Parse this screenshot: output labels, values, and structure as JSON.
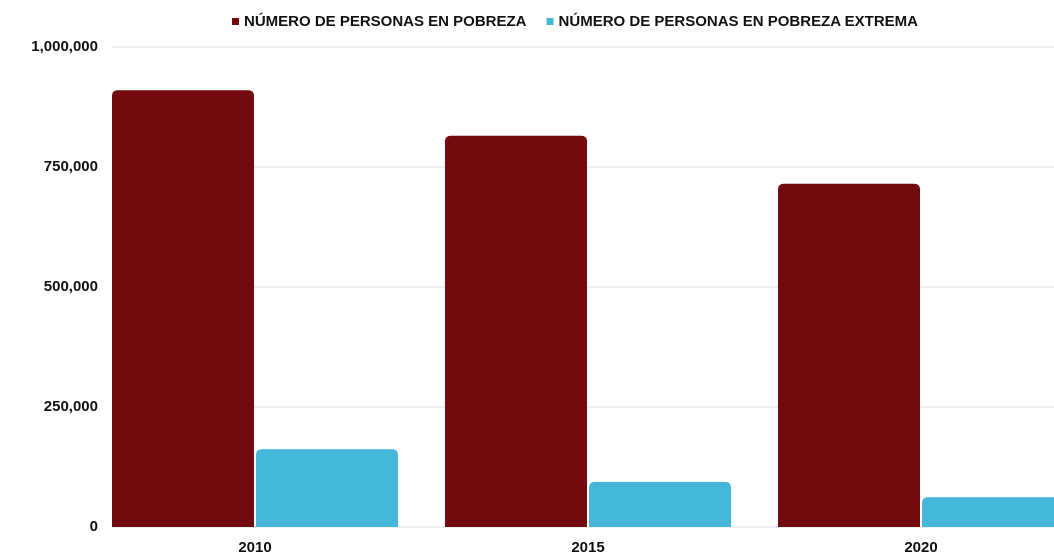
{
  "chart_data": {
    "type": "bar",
    "categories": [
      "2010",
      "2015",
      "2020"
    ],
    "series": [
      {
        "name": "NÚMERO DE PERSONAS EN POBREZA",
        "color": "#720a0f",
        "values": [
          910000,
          815000,
          715000
        ]
      },
      {
        "name": "NÚMERO DE PERSONAS EN POBREZA EXTREMA",
        "color": "#45b7d8",
        "values": [
          162000,
          94000,
          62000
        ]
      }
    ],
    "ylim": [
      0,
      1000000
    ],
    "yticks": [
      0,
      {
        "value": 250000,
        "label": "250,000"
      },
      {
        "value": 500000,
        "label": "500,000"
      },
      {
        "value": 750000,
        "label": "750,000"
      },
      {
        "value": 1000000,
        "label": "1,000,000"
      }
    ],
    "grid": true,
    "legend": "top"
  }
}
